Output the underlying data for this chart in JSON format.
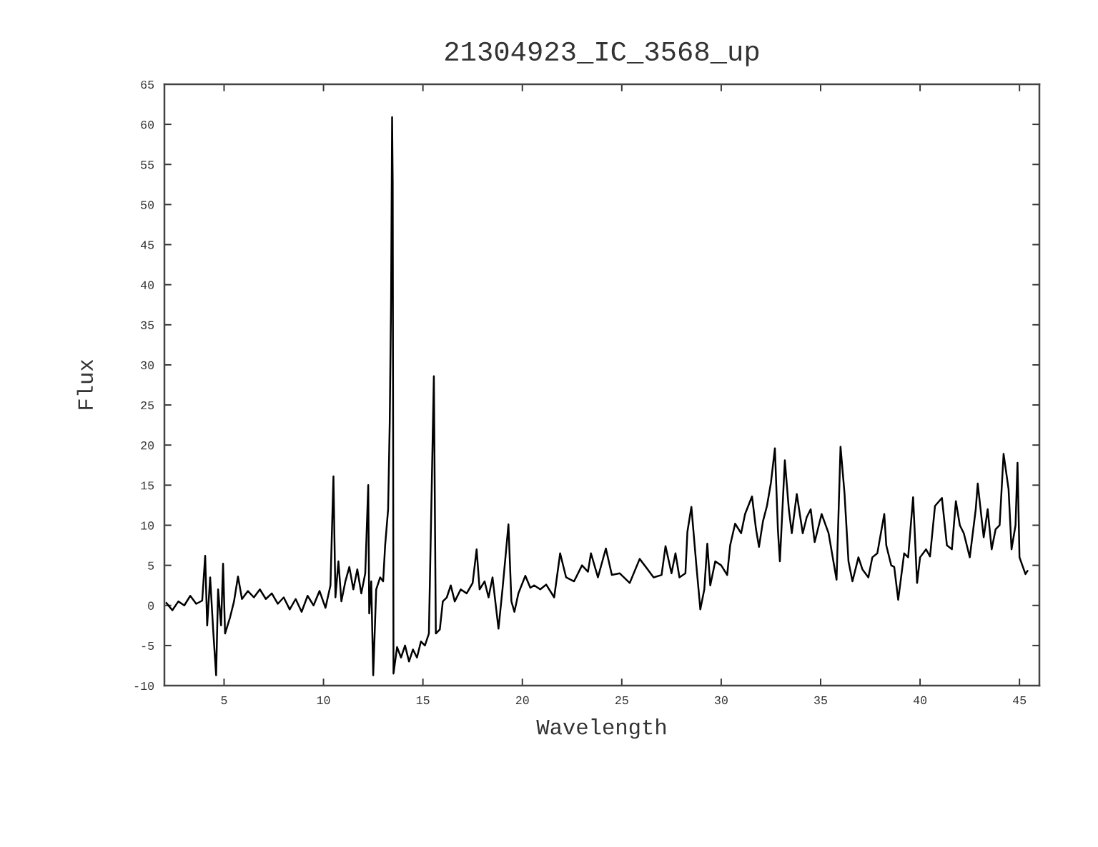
{
  "chart_data": {
    "type": "line",
    "title": "21304923_IC_3568_up",
    "xlabel": "Wavelength",
    "ylabel": "Flux",
    "color": "#000000",
    "x": [
      2.1,
      2.4,
      2.7,
      3.0,
      3.3,
      3.6,
      3.9,
      4.05,
      4.15,
      4.3,
      4.45,
      4.6,
      4.7,
      4.85,
      4.95,
      5.05,
      5.3,
      5.5,
      5.7,
      5.9,
      6.2,
      6.5,
      6.8,
      7.1,
      7.4,
      7.7,
      8.0,
      8.3,
      8.6,
      8.9,
      9.2,
      9.5,
      9.8,
      10.1,
      10.35,
      10.5,
      10.6,
      10.75,
      10.9,
      11.1,
      11.3,
      11.5,
      11.7,
      11.9,
      12.1,
      12.25,
      12.3,
      12.4,
      12.5,
      12.65,
      12.85,
      13.0,
      13.1,
      13.25,
      13.33,
      13.4,
      13.45,
      13.48,
      13.52,
      13.7,
      13.9,
      14.1,
      14.3,
      14.5,
      14.7,
      14.9,
      15.1,
      15.3,
      15.55,
      15.65,
      15.85,
      16.0,
      16.2,
      16.4,
      16.6,
      16.9,
      17.2,
      17.5,
      17.7,
      17.85,
      18.1,
      18.3,
      18.5,
      18.8,
      19.0,
      19.15,
      19.3,
      19.45,
      19.6,
      19.8,
      20.15,
      20.4,
      20.6,
      20.9,
      21.2,
      21.5,
      21.6,
      21.9,
      22.2,
      22.6,
      23.0,
      23.3,
      23.45,
      23.8,
      24.2,
      24.5,
      24.9,
      25.4,
      25.9,
      26.3,
      26.6,
      27.0,
      27.2,
      27.5,
      27.7,
      27.9,
      28.2,
      28.3,
      28.5,
      28.75,
      28.95,
      29.15,
      29.3,
      29.45,
      29.7,
      30.0,
      30.3,
      30.45,
      30.7,
      31.0,
      31.2,
      31.55,
      31.75,
      31.9,
      32.1,
      32.3,
      32.5,
      32.7,
      32.85,
      32.95,
      33.2,
      33.4,
      33.55,
      33.8,
      34.1,
      34.3,
      34.5,
      34.7,
      35.05,
      35.4,
      35.8,
      36.0,
      36.2,
      36.4,
      36.6,
      36.9,
      37.1,
      37.4,
      37.6,
      37.85,
      38.2,
      38.3,
      38.55,
      38.7,
      38.9,
      39.2,
      39.4,
      39.65,
      39.85,
      40.0,
      40.3,
      40.5,
      40.75,
      41.1,
      41.35,
      41.6,
      41.8,
      42.0,
      42.2,
      42.5,
      42.8,
      42.9,
      43.2,
      43.4,
      43.6,
      43.8,
      44.0,
      44.2,
      44.45,
      44.6,
      44.8,
      44.9,
      45.0,
      45.3,
      45.4
    ],
    "values": [
      0.3,
      -0.6,
      0.5,
      0.0,
      1.2,
      0.2,
      0.6,
      6.2,
      -2.5,
      3.5,
      -3.0,
      -8.7,
      2.0,
      -2.5,
      5.2,
      -3.5,
      -1.5,
      0.5,
      3.6,
      0.8,
      1.8,
      1.0,
      2.0,
      0.8,
      1.5,
      0.2,
      1.0,
      -0.5,
      0.8,
      -0.8,
      1.2,
      0.0,
      1.8,
      -0.3,
      2.5,
      16.1,
      1.0,
      5.5,
      0.5,
      3.0,
      4.8,
      2.0,
      4.5,
      1.5,
      4.0,
      15.0,
      -1.0,
      3.0,
      -8.7,
      2.0,
      3.5,
      3.0,
      7.5,
      12.0,
      22.7,
      38.5,
      60.9,
      52.8,
      -8.5,
      -5.2,
      -6.5,
      -5.0,
      -7.0,
      -5.5,
      -6.5,
      -4.5,
      -5.0,
      -3.5,
      28.6,
      -3.5,
      -3.0,
      0.5,
      1.0,
      2.5,
      0.5,
      2.0,
      1.5,
      2.8,
      7.0,
      2.0,
      3.0,
      1.0,
      3.5,
      -2.9,
      2.0,
      6.0,
      10.1,
      0.5,
      -0.8,
      1.5,
      3.7,
      2.2,
      2.5,
      2.0,
      2.6,
      1.4,
      1.0,
      6.5,
      3.5,
      3.0,
      5.0,
      4.2,
      6.5,
      3.5,
      7.1,
      3.8,
      4.0,
      2.8,
      5.8,
      4.5,
      3.5,
      3.8,
      7.4,
      4.0,
      6.5,
      3.5,
      4.0,
      9.2,
      12.3,
      5.0,
      -0.5,
      2.0,
      7.7,
      2.5,
      5.5,
      5.0,
      3.8,
      7.5,
      10.2,
      9.0,
      11.4,
      13.6,
      9.5,
      7.3,
      10.5,
      12.4,
      15.3,
      19.6,
      9.5,
      5.5,
      18.1,
      12.0,
      9.0,
      13.9,
      9.0,
      11.0,
      12.0,
      7.9,
      11.4,
      9.0,
      3.2,
      19.8,
      14.0,
      5.5,
      3.0,
      6.0,
      4.5,
      3.5,
      6.0,
      6.5,
      11.4,
      7.5,
      5.0,
      4.8,
      0.7,
      6.5,
      6.0,
      13.5,
      2.8,
      6.0,
      7.0,
      6.1,
      12.4,
      13.4,
      7.5,
      7.0,
      13.0,
      10.0,
      9.0,
      6.0,
      12.0,
      15.2,
      8.5,
      12.0,
      7.0,
      9.5,
      10.0,
      18.9,
      14.5,
      7.0,
      10.0,
      17.8,
      6.0,
      3.9,
      4.3
    ],
    "xlim": [
      2,
      46
    ],
    "xticks": [
      5,
      10,
      15,
      20,
      25,
      30,
      35,
      40,
      45
    ],
    "ylim": [
      -10,
      65
    ],
    "yticks": [
      -10,
      -5,
      0,
      5,
      10,
      15,
      20,
      25,
      30,
      35,
      40,
      45,
      50,
      55,
      60,
      65
    ]
  }
}
